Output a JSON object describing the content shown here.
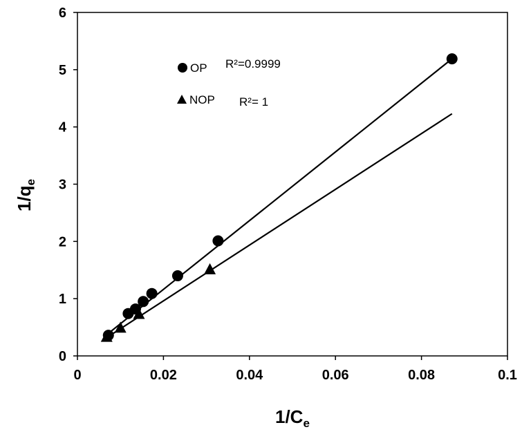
{
  "chart_data": {
    "type": "scatter",
    "xlabel_main": "1/C",
    "xlabel_sub": "e",
    "ylabel_main": "1/q",
    "ylabel_sub": "e",
    "xlim": [
      0,
      0.1
    ],
    "ylim": [
      0,
      6
    ],
    "x_ticks": [
      "0",
      "0.02",
      "0.04",
      "0.06",
      "0.08",
      "0.1"
    ],
    "y_ticks": [
      "0",
      "1",
      "2",
      "3",
      "4",
      "5",
      "6"
    ],
    "grid": false,
    "legend_position": "top-left",
    "series": [
      {
        "name": "OP",
        "marker": "circle",
        "r2_label": "R²=0.9999",
        "x": [
          0.0072,
          0.0118,
          0.0135,
          0.0153,
          0.0173,
          0.0233,
          0.0327,
          0.0871
        ],
        "y": [
          0.36,
          0.74,
          0.82,
          0.95,
          1.09,
          1.4,
          2.01,
          5.19
        ],
        "fit": {
          "x": [
            0.0068,
            0.0871
          ],
          "y": [
            0.37,
            5.19
          ]
        }
      },
      {
        "name": "NOP",
        "marker": "triangle",
        "r2_label": "R²= 1",
        "x": [
          0.0068,
          0.01,
          0.0143,
          0.0308
        ],
        "y": [
          0.32,
          0.48,
          0.72,
          1.5
        ],
        "fit": {
          "x": [
            0.006,
            0.0871
          ],
          "y": [
            0.28,
            4.23
          ]
        }
      }
    ],
    "colors": {
      "marker": "#000000",
      "line": "#000000",
      "axis": "#000000"
    }
  }
}
